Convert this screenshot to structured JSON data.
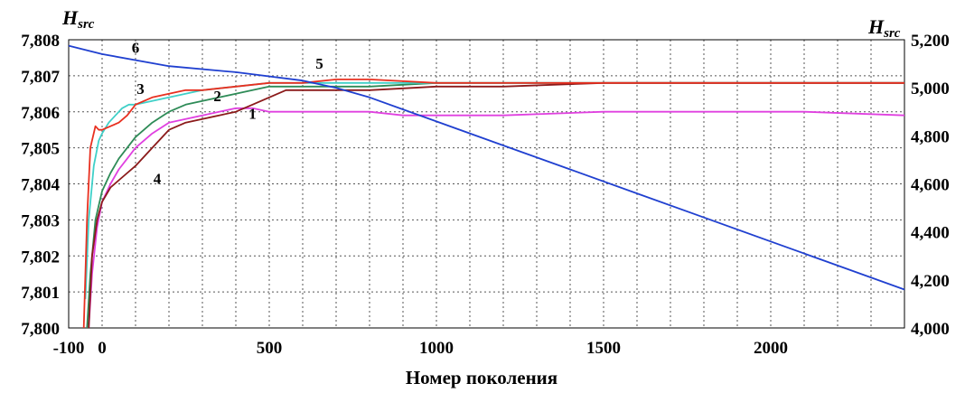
{
  "chart_data": {
    "type": "line",
    "xlabel": "Номер поколения",
    "y_left_label": {
      "main": "H",
      "sub": "src"
    },
    "y_right_label": {
      "main": "H",
      "sub": "src"
    },
    "xlim": [
      -100,
      2400
    ],
    "ylim_left": [
      7.8,
      7.808
    ],
    "ylim_right": [
      4000,
      5200
    ],
    "x_ticks": [
      {
        "value": -100,
        "label": "-100"
      },
      {
        "value": 0,
        "label": "0"
      },
      {
        "value": 500,
        "label": "500"
      },
      {
        "value": 1000,
        "label": "1000"
      },
      {
        "value": 1500,
        "label": "1500"
      },
      {
        "value": 2000,
        "label": "2000"
      }
    ],
    "y_left_ticks": [
      {
        "value": 7.8,
        "label": "7,800"
      },
      {
        "value": 7.801,
        "label": "7,801"
      },
      {
        "value": 7.802,
        "label": "7,802"
      },
      {
        "value": 7.803,
        "label": "7,803"
      },
      {
        "value": 7.804,
        "label": "7,804"
      },
      {
        "value": 7.805,
        "label": "7,805"
      },
      {
        "value": 7.806,
        "label": "7,806"
      },
      {
        "value": 7.807,
        "label": "7,807"
      },
      {
        "value": 7.808,
        "label": "7,808"
      }
    ],
    "y_right_ticks": [
      {
        "value": 4000,
        "label": "4,000"
      },
      {
        "value": 4200,
        "label": "4,200"
      },
      {
        "value": 4400,
        "label": "4,400"
      },
      {
        "value": 4600,
        "label": "4,600"
      },
      {
        "value": 4800,
        "label": "4,800"
      },
      {
        "value": 5000,
        "label": "5,000"
      },
      {
        "value": 5200,
        "label": "5,200"
      }
    ],
    "grid": true,
    "series": [
      {
        "id": "1",
        "label": "1",
        "color": "#e040e0",
        "axis": "left",
        "label_at": {
          "x": 450,
          "y": 7.8058
        },
        "x": [
          -40,
          -30,
          -15,
          0,
          25,
          50,
          75,
          100,
          150,
          200,
          250,
          300,
          350,
          400,
          450,
          500,
          600,
          700,
          800,
          900,
          1000,
          1200,
          1500,
          1800,
          2100,
          2400
        ],
        "y": [
          7.8,
          7.8015,
          7.8028,
          7.8035,
          7.804,
          7.8044,
          7.8047,
          7.805,
          7.8054,
          7.8057,
          7.8058,
          7.8059,
          7.806,
          7.8061,
          7.8061,
          7.806,
          7.806,
          7.806,
          7.806,
          7.8059,
          7.8059,
          7.8059,
          7.806,
          7.806,
          7.806,
          7.8059
        ]
      },
      {
        "id": "2",
        "label": "2",
        "color": "#2e8b57",
        "axis": "left",
        "label_at": {
          "x": 345,
          "y": 7.8063
        },
        "x": [
          -45,
          -35,
          -20,
          0,
          25,
          50,
          75,
          100,
          150,
          200,
          250,
          300,
          350,
          400,
          450,
          500,
          550,
          600,
          700,
          800,
          1000,
          1200,
          1500,
          1800,
          2100,
          2400
        ],
        "y": [
          7.8,
          7.8015,
          7.803,
          7.8038,
          7.8043,
          7.8047,
          7.805,
          7.8053,
          7.8057,
          7.806,
          7.8062,
          7.8063,
          7.8064,
          7.8065,
          7.8066,
          7.8067,
          7.8067,
          7.8067,
          7.8067,
          7.8067,
          7.8068,
          7.8068,
          7.8068,
          7.8068,
          7.8068,
          7.8068
        ]
      },
      {
        "id": "3",
        "label": "3",
        "color": "#40d0c8",
        "axis": "left",
        "label_at": {
          "x": 115,
          "y": 7.8065
        },
        "x": [
          -50,
          -40,
          -25,
          -10,
          0,
          20,
          40,
          60,
          80,
          100,
          150,
          200,
          250,
          300,
          400,
          500,
          600,
          700,
          800,
          1000,
          1200,
          1500,
          1800,
          2100,
          2400
        ],
        "y": [
          7.8008,
          7.803,
          7.8045,
          7.8052,
          7.8054,
          7.8057,
          7.8059,
          7.8061,
          7.8062,
          7.8062,
          7.8063,
          7.8064,
          7.8065,
          7.8066,
          7.8067,
          7.8068,
          7.8068,
          7.8068,
          7.8068,
          7.8068,
          7.8068,
          7.8068,
          7.8068,
          7.8068,
          7.8068
        ]
      },
      {
        "id": "4",
        "label": "4",
        "color": "#8b1a1a",
        "axis": "left",
        "label_at": {
          "x": 165,
          "y": 7.804
        },
        "x": [
          -40,
          -30,
          -15,
          0,
          25,
          50,
          75,
          100,
          150,
          200,
          250,
          300,
          350,
          400,
          450,
          500,
          550,
          600,
          700,
          800,
          1000,
          1200,
          1500,
          1800,
          2100,
          2400
        ],
        "y": [
          7.8,
          7.802,
          7.803,
          7.8035,
          7.8039,
          7.8041,
          7.8043,
          7.8045,
          7.805,
          7.8055,
          7.8057,
          7.8058,
          7.8059,
          7.806,
          7.8062,
          7.8064,
          7.8066,
          7.8066,
          7.8066,
          7.8066,
          7.8067,
          7.8067,
          7.8068,
          7.8068,
          7.8068,
          7.8068
        ]
      },
      {
        "id": "5",
        "label": "5",
        "color": "#e83020",
        "axis": "left",
        "label_at": {
          "x": 650,
          "y": 7.8072
        },
        "x": [
          -55,
          -45,
          -35,
          -20,
          -10,
          0,
          25,
          50,
          75,
          100,
          150,
          200,
          250,
          300,
          400,
          500,
          600,
          700,
          800,
          1000,
          1200,
          1500,
          1800,
          2100,
          2400
        ],
        "y": [
          7.8,
          7.803,
          7.805,
          7.8056,
          7.8055,
          7.8055,
          7.8056,
          7.8057,
          7.8059,
          7.8062,
          7.8064,
          7.8065,
          7.8066,
          7.8066,
          7.8067,
          7.8068,
          7.8068,
          7.8069,
          7.8069,
          7.8068,
          7.8068,
          7.8068,
          7.8068,
          7.8068,
          7.8068
        ]
      },
      {
        "id": "6",
        "label": "6",
        "color": "#2040d0",
        "axis": "right",
        "label_at": {
          "x": 100,
          "y": 5145
        },
        "x": [
          -100,
          0,
          200,
          400,
          600,
          700,
          800,
          900,
          1000,
          1200,
          1400,
          1600,
          1800,
          2000,
          2200,
          2400
        ],
        "y": [
          5175,
          5140,
          5090,
          5065,
          5030,
          5000,
          4960,
          4910,
          4860,
          4760,
          4660,
          4560,
          4460,
          4360,
          4260,
          4160
        ]
      }
    ]
  }
}
